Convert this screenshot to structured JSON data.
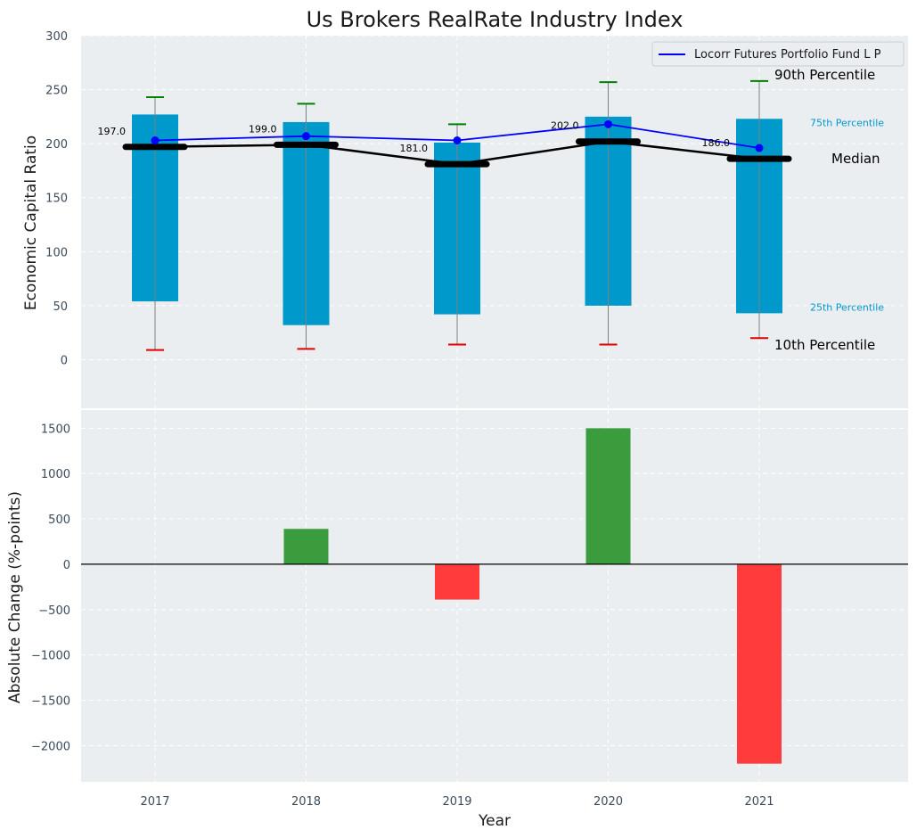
{
  "chart_data": [
    {
      "type": "box",
      "title": "Us Brokers RealRate Industry Index",
      "ylabel": "Economic Capital Ratio",
      "ylim": [
        -45,
        300
      ],
      "yticks": [
        0,
        50,
        100,
        150,
        200,
        250,
        300
      ],
      "categories": [
        "2017",
        "2018",
        "2019",
        "2020",
        "2021"
      ],
      "percentile_10": [
        9,
        10,
        14,
        14,
        20
      ],
      "percentile_25": [
        54,
        32,
        42,
        50,
        43
      ],
      "median": [
        197.0,
        199.0,
        181.0,
        202.0,
        186.0
      ],
      "median_labels": [
        "197.0",
        "199.0",
        "181.0",
        "202.0",
        "186.0"
      ],
      "percentile_75": [
        227,
        220,
        201,
        225,
        223
      ],
      "percentile_90": [
        243,
        237,
        218,
        257,
        258
      ],
      "series": [
        {
          "name": "Locorr Futures Portfolio Fund L P",
          "values": [
            203,
            207,
            203,
            218,
            196
          ],
          "color": "#0000ff"
        }
      ],
      "annotations": {
        "p90": "90th Percentile",
        "p75": "75th Percentile",
        "median": "Median",
        "p25": "25th Percentile",
        "p10": "10th Percentile"
      },
      "legend_position": "top-right",
      "grid": true
    },
    {
      "type": "bar",
      "xlabel": "Year",
      "ylabel": "Absolute Change (%-points)",
      "ylim": [
        -2400,
        1700
      ],
      "yticks": [
        -2000,
        -1500,
        -1000,
        -500,
        0,
        500,
        1000,
        1500
      ],
      "ytick_labels": [
        "−2000",
        "−1500",
        "−1000",
        "−500",
        "0",
        "500",
        "1000",
        "1500"
      ],
      "categories": [
        "2017",
        "2018",
        "2019",
        "2020",
        "2021"
      ],
      "values": [
        0,
        390,
        -390,
        1500,
        -2200
      ],
      "grid": true
    }
  ],
  "colors": {
    "box": "#0099cc",
    "whisker": "#808080",
    "p90_cap": "#008000",
    "p10_cap": "#e00000",
    "median": "#000000",
    "positive": "#3a9c3d",
    "negative": "#ff3b3b",
    "panel": "#eaeef0",
    "grid": "#ffffff"
  }
}
